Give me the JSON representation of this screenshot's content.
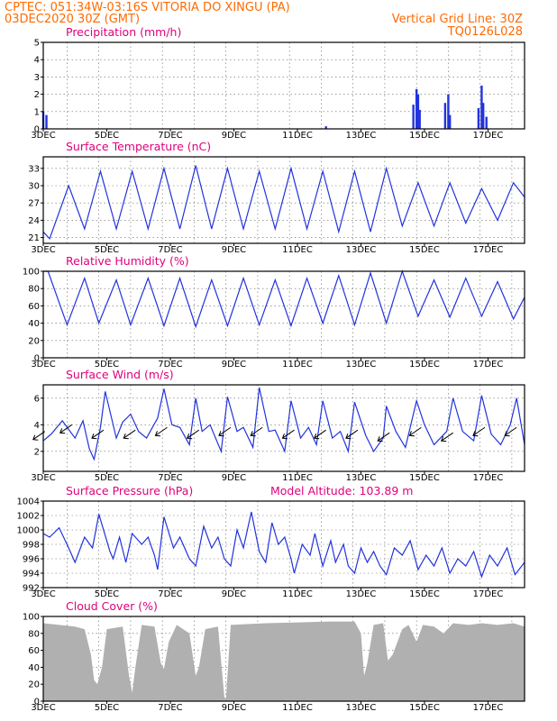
{
  "header": {
    "line1_left": "CPTEC:   051:34W-03:16S   VITORIA DO XINGU (PA)",
    "line2_left": "03DEC2020 30Z (GMT)",
    "line2_right": "Vertical Grid Line: 30Z",
    "line3_right": "TQ0126L028"
  },
  "colors": {
    "header": "#ff6a00",
    "panel_title": "#e0007c",
    "series": "#2233dd",
    "cloud_fill": "#b0b0b0"
  },
  "x_ticks": [
    "3DEC",
    "5DEC",
    "7DEC",
    "9DEC",
    "11DEC",
    "13DEC",
    "15DEC",
    "17DEC"
  ],
  "chart_data": [
    {
      "id": "precip",
      "type": "bar",
      "title": "Precipitation (mm/h)",
      "xlabel": "",
      "ylabel": "",
      "x_range_days": [
        3,
        18.15
      ],
      "ylim": [
        0,
        5
      ],
      "yticks": [
        0,
        1,
        2,
        3,
        4,
        5
      ],
      "bars": [
        {
          "day": 3.0,
          "value": 1.0
        },
        {
          "day": 3.1,
          "value": 0.8
        },
        {
          "day": 11.9,
          "value": 0.15
        },
        {
          "day": 14.65,
          "value": 1.4
        },
        {
          "day": 14.75,
          "value": 2.3
        },
        {
          "day": 14.8,
          "value": 2.0
        },
        {
          "day": 14.85,
          "value": 1.1
        },
        {
          "day": 15.65,
          "value": 1.5
        },
        {
          "day": 15.75,
          "value": 2.0
        },
        {
          "day": 15.8,
          "value": 0.8
        },
        {
          "day": 16.7,
          "value": 1.2
        },
        {
          "day": 16.8,
          "value": 2.5
        },
        {
          "day": 16.85,
          "value": 1.5
        },
        {
          "day": 16.95,
          "value": 0.7
        }
      ]
    },
    {
      "id": "temp",
      "type": "line",
      "title": "Surface Temperature (nC)",
      "xlabel": "",
      "ylabel": "",
      "ylim": [
        20,
        35
      ],
      "yticks": [
        21,
        24,
        27,
        30,
        33
      ],
      "min_day": [
        3.2,
        4.3,
        5.3,
        6.3,
        7.3,
        8.3,
        9.3,
        10.3,
        11.3,
        12.3,
        13.3,
        14.3,
        15.3,
        16.3,
        17.3
      ],
      "min_val": [
        20.8,
        22.5,
        22.5,
        22.5,
        22.5,
        22.5,
        22.5,
        22.5,
        22.5,
        22.0,
        22.0,
        23.0,
        23.0,
        23.5,
        24.0
      ],
      "max_day": [
        3.8,
        4.8,
        5.8,
        6.8,
        7.8,
        8.8,
        9.8,
        10.8,
        11.8,
        12.8,
        13.8,
        14.8,
        15.8,
        16.8,
        17.8
      ],
      "max_val": [
        30.0,
        32.5,
        32.5,
        33.0,
        33.5,
        33.0,
        32.5,
        33.0,
        32.5,
        32.5,
        33.0,
        30.5,
        30.5,
        29.5,
        30.5
      ],
      "end": {
        "day": 18.15,
        "value": 28.0
      }
    },
    {
      "id": "rh",
      "type": "line",
      "title": "Relative Humidity (%)",
      "xlabel": "",
      "ylabel": "",
      "ylim": [
        0,
        100
      ],
      "yticks": [
        0,
        20,
        40,
        60,
        80,
        100
      ],
      "points": [
        {
          "day": 3.0,
          "value": 100
        },
        {
          "day": 3.15,
          "value": 100
        },
        {
          "day": 3.75,
          "value": 38
        },
        {
          "day": 4.3,
          "value": 92
        },
        {
          "day": 4.75,
          "value": 40
        },
        {
          "day": 5.3,
          "value": 90
        },
        {
          "day": 5.75,
          "value": 38
        },
        {
          "day": 6.3,
          "value": 92
        },
        {
          "day": 6.8,
          "value": 37
        },
        {
          "day": 7.3,
          "value": 92
        },
        {
          "day": 7.8,
          "value": 36
        },
        {
          "day": 8.3,
          "value": 90
        },
        {
          "day": 8.8,
          "value": 37
        },
        {
          "day": 9.3,
          "value": 92
        },
        {
          "day": 9.8,
          "value": 38
        },
        {
          "day": 10.3,
          "value": 90
        },
        {
          "day": 10.8,
          "value": 37
        },
        {
          "day": 11.3,
          "value": 92
        },
        {
          "day": 11.8,
          "value": 40
        },
        {
          "day": 12.3,
          "value": 95
        },
        {
          "day": 12.8,
          "value": 38
        },
        {
          "day": 13.3,
          "value": 98
        },
        {
          "day": 13.8,
          "value": 40
        },
        {
          "day": 14.3,
          "value": 100
        },
        {
          "day": 14.8,
          "value": 48
        },
        {
          "day": 15.3,
          "value": 90
        },
        {
          "day": 15.8,
          "value": 47
        },
        {
          "day": 16.3,
          "value": 92
        },
        {
          "day": 16.8,
          "value": 48
        },
        {
          "day": 17.3,
          "value": 88
        },
        {
          "day": 17.8,
          "value": 45
        },
        {
          "day": 18.15,
          "value": 70
        }
      ]
    },
    {
      "id": "wind",
      "type": "line",
      "title": "Surface Wind (m/s)",
      "xlabel": "",
      "ylabel": "",
      "ylim": [
        0.5,
        7
      ],
      "yticks": [
        2,
        4,
        6
      ],
      "points": [
        {
          "day": 3.0,
          "value": 2.8
        },
        {
          "day": 3.25,
          "value": 3.3
        },
        {
          "day": 3.6,
          "value": 4.3
        },
        {
          "day": 4.0,
          "value": 3.0
        },
        {
          "day": 4.25,
          "value": 4.3
        },
        {
          "day": 4.45,
          "value": 2.2
        },
        {
          "day": 4.6,
          "value": 1.4
        },
        {
          "day": 4.8,
          "value": 3.8
        },
        {
          "day": 4.95,
          "value": 6.5
        },
        {
          "day": 5.3,
          "value": 3.0
        },
        {
          "day": 5.5,
          "value": 4.2
        },
        {
          "day": 5.75,
          "value": 4.8
        },
        {
          "day": 6.0,
          "value": 3.5
        },
        {
          "day": 6.25,
          "value": 3.0
        },
        {
          "day": 6.6,
          "value": 4.5
        },
        {
          "day": 6.8,
          "value": 6.7
        },
        {
          "day": 7.05,
          "value": 4.0
        },
        {
          "day": 7.3,
          "value": 3.8
        },
        {
          "day": 7.6,
          "value": 2.5
        },
        {
          "day": 7.8,
          "value": 6.0
        },
        {
          "day": 8.0,
          "value": 3.5
        },
        {
          "day": 8.25,
          "value": 4.0
        },
        {
          "day": 8.6,
          "value": 2.0
        },
        {
          "day": 8.8,
          "value": 6.1
        },
        {
          "day": 9.1,
          "value": 3.5
        },
        {
          "day": 9.3,
          "value": 3.8
        },
        {
          "day": 9.6,
          "value": 2.3
        },
        {
          "day": 9.8,
          "value": 6.8
        },
        {
          "day": 10.1,
          "value": 3.5
        },
        {
          "day": 10.3,
          "value": 3.6
        },
        {
          "day": 10.6,
          "value": 2.0
        },
        {
          "day": 10.8,
          "value": 5.8
        },
        {
          "day": 11.1,
          "value": 3.0
        },
        {
          "day": 11.35,
          "value": 3.8
        },
        {
          "day": 11.6,
          "value": 2.5
        },
        {
          "day": 11.8,
          "value": 5.8
        },
        {
          "day": 12.1,
          "value": 3.0
        },
        {
          "day": 12.35,
          "value": 3.5
        },
        {
          "day": 12.6,
          "value": 2.0
        },
        {
          "day": 12.8,
          "value": 5.7
        },
        {
          "day": 13.15,
          "value": 3.2
        },
        {
          "day": 13.4,
          "value": 2.0
        },
        {
          "day": 13.7,
          "value": 3.0
        },
        {
          "day": 13.8,
          "value": 5.4
        },
        {
          "day": 14.1,
          "value": 3.5
        },
        {
          "day": 14.4,
          "value": 2.3
        },
        {
          "day": 14.75,
          "value": 5.8
        },
        {
          "day": 15.0,
          "value": 4.0
        },
        {
          "day": 15.3,
          "value": 2.5
        },
        {
          "day": 15.7,
          "value": 3.5
        },
        {
          "day": 15.9,
          "value": 6.0
        },
        {
          "day": 16.2,
          "value": 3.5
        },
        {
          "day": 16.55,
          "value": 2.8
        },
        {
          "day": 16.8,
          "value": 6.2
        },
        {
          "day": 17.1,
          "value": 3.3
        },
        {
          "day": 17.4,
          "value": 2.5
        },
        {
          "day": 17.7,
          "value": 4.0
        },
        {
          "day": 17.9,
          "value": 6.0
        },
        {
          "day": 18.15,
          "value": 2.5
        }
      ],
      "arrows": [
        {
          "day": 3.05,
          "value": 3.5,
          "toward": "southwest"
        },
        {
          "day": 3.9,
          "value": 4.0,
          "toward": "southwest"
        },
        {
          "day": 4.9,
          "value": 3.6,
          "toward": "southwest"
        },
        {
          "day": 5.9,
          "value": 3.6,
          "toward": "southwest"
        },
        {
          "day": 6.9,
          "value": 3.8,
          "toward": "southwest"
        },
        {
          "day": 7.9,
          "value": 3.6,
          "toward": "southwest"
        },
        {
          "day": 8.9,
          "value": 3.8,
          "toward": "southwest"
        },
        {
          "day": 9.9,
          "value": 3.8,
          "toward": "southwest"
        },
        {
          "day": 10.9,
          "value": 3.6,
          "toward": "southwest"
        },
        {
          "day": 11.9,
          "value": 3.6,
          "toward": "southwest"
        },
        {
          "day": 12.9,
          "value": 3.6,
          "toward": "southwest"
        },
        {
          "day": 13.9,
          "value": 3.4,
          "toward": "southwest"
        },
        {
          "day": 14.9,
          "value": 3.8,
          "toward": "southwest"
        },
        {
          "day": 15.9,
          "value": 3.4,
          "toward": "southwest"
        },
        {
          "day": 16.9,
          "value": 3.8,
          "toward": "southwest"
        },
        {
          "day": 17.9,
          "value": 3.8,
          "toward": "southwest"
        }
      ]
    },
    {
      "id": "press",
      "type": "line",
      "title": "Surface Pressure (hPa)",
      "subtitle": "Model Altitude: 103.89 m",
      "xlabel": "",
      "ylabel": "",
      "ylim": [
        992,
        1004
      ],
      "yticks": [
        992,
        994,
        996,
        998,
        1000,
        1002,
        1004
      ],
      "points": [
        {
          "day": 3.0,
          "value": 999.5
        },
        {
          "day": 3.2,
          "value": 999.0
        },
        {
          "day": 3.5,
          "value": 1000.3
        },
        {
          "day": 3.8,
          "value": 997.5
        },
        {
          "day": 4.0,
          "value": 995.5
        },
        {
          "day": 4.3,
          "value": 999.0
        },
        {
          "day": 4.55,
          "value": 997.5
        },
        {
          "day": 4.75,
          "value": 1002.2
        },
        {
          "day": 5.1,
          "value": 997.0
        },
        {
          "day": 5.2,
          "value": 996.0
        },
        {
          "day": 5.4,
          "value": 999.0
        },
        {
          "day": 5.6,
          "value": 995.5
        },
        {
          "day": 5.8,
          "value": 999.5
        },
        {
          "day": 6.1,
          "value": 998.0
        },
        {
          "day": 6.3,
          "value": 999.0
        },
        {
          "day": 6.5,
          "value": 996.5
        },
        {
          "day": 6.6,
          "value": 994.5
        },
        {
          "day": 6.8,
          "value": 1001.8
        },
        {
          "day": 7.1,
          "value": 997.5
        },
        {
          "day": 7.3,
          "value": 999.0
        },
        {
          "day": 7.6,
          "value": 996.0
        },
        {
          "day": 7.8,
          "value": 995.0
        },
        {
          "day": 8.05,
          "value": 1000.5
        },
        {
          "day": 8.3,
          "value": 997.5
        },
        {
          "day": 8.5,
          "value": 999.0
        },
        {
          "day": 8.7,
          "value": 996.0
        },
        {
          "day": 8.9,
          "value": 995.0
        },
        {
          "day": 9.1,
          "value": 1000.0
        },
        {
          "day": 9.3,
          "value": 997.5
        },
        {
          "day": 9.55,
          "value": 1002.5
        },
        {
          "day": 9.8,
          "value": 997.0
        },
        {
          "day": 10.0,
          "value": 995.5
        },
        {
          "day": 10.2,
          "value": 1001.0
        },
        {
          "day": 10.4,
          "value": 998.0
        },
        {
          "day": 10.6,
          "value": 999.0
        },
        {
          "day": 10.8,
          "value": 996.0
        },
        {
          "day": 10.9,
          "value": 994.0
        },
        {
          "day": 11.15,
          "value": 998.0
        },
        {
          "day": 11.4,
          "value": 996.5
        },
        {
          "day": 11.55,
          "value": 999.5
        },
        {
          "day": 11.8,
          "value": 995.0
        },
        {
          "day": 12.05,
          "value": 998.5
        },
        {
          "day": 12.2,
          "value": 995.5
        },
        {
          "day": 12.45,
          "value": 998.0
        },
        {
          "day": 12.6,
          "value": 995.0
        },
        {
          "day": 12.8,
          "value": 994.0
        },
        {
          "day": 13.0,
          "value": 997.5
        },
        {
          "day": 13.2,
          "value": 995.5
        },
        {
          "day": 13.4,
          "value": 997.0
        },
        {
          "day": 13.6,
          "value": 995.0
        },
        {
          "day": 13.8,
          "value": 993.8
        },
        {
          "day": 14.05,
          "value": 997.5
        },
        {
          "day": 14.3,
          "value": 996.5
        },
        {
          "day": 14.55,
          "value": 998.5
        },
        {
          "day": 14.8,
          "value": 994.5
        },
        {
          "day": 15.05,
          "value": 996.5
        },
        {
          "day": 15.3,
          "value": 995.0
        },
        {
          "day": 15.55,
          "value": 997.5
        },
        {
          "day": 15.8,
          "value": 994.0
        },
        {
          "day": 16.05,
          "value": 996.0
        },
        {
          "day": 16.3,
          "value": 995.0
        },
        {
          "day": 16.55,
          "value": 997.0
        },
        {
          "day": 16.8,
          "value": 993.5
        },
        {
          "day": 17.05,
          "value": 996.5
        },
        {
          "day": 17.3,
          "value": 995.0
        },
        {
          "day": 17.6,
          "value": 997.5
        },
        {
          "day": 17.85,
          "value": 993.8
        },
        {
          "day": 18.15,
          "value": 995.5
        }
      ]
    },
    {
      "id": "cloud",
      "type": "area",
      "title": "Cloud Cover (%)",
      "xlabel": "",
      "ylabel": "",
      "ylim": [
        0,
        100
      ],
      "yticks": [
        0,
        20,
        40,
        60,
        80,
        100
      ],
      "points": [
        {
          "day": 3.0,
          "value": 92
        },
        {
          "day": 3.5,
          "value": 90
        },
        {
          "day": 4.0,
          "value": 88
        },
        {
          "day": 4.3,
          "value": 85
        },
        {
          "day": 4.5,
          "value": 55
        },
        {
          "day": 4.6,
          "value": 25
        },
        {
          "day": 4.7,
          "value": 20
        },
        {
          "day": 4.85,
          "value": 40
        },
        {
          "day": 5.0,
          "value": 85
        },
        {
          "day": 5.5,
          "value": 88
        },
        {
          "day": 5.7,
          "value": 30
        },
        {
          "day": 5.8,
          "value": 10
        },
        {
          "day": 5.9,
          "value": 40
        },
        {
          "day": 6.1,
          "value": 90
        },
        {
          "day": 6.5,
          "value": 88
        },
        {
          "day": 6.7,
          "value": 45
        },
        {
          "day": 6.8,
          "value": 38
        },
        {
          "day": 6.95,
          "value": 70
        },
        {
          "day": 7.2,
          "value": 90
        },
        {
          "day": 7.6,
          "value": 80
        },
        {
          "day": 7.8,
          "value": 30
        },
        {
          "day": 7.9,
          "value": 40
        },
        {
          "day": 8.1,
          "value": 85
        },
        {
          "day": 8.5,
          "value": 88
        },
        {
          "day": 8.7,
          "value": 5
        },
        {
          "day": 8.75,
          "value": 2
        },
        {
          "day": 8.9,
          "value": 90
        },
        {
          "day": 10.0,
          "value": 92
        },
        {
          "day": 11.0,
          "value": 93
        },
        {
          "day": 12.0,
          "value": 94
        },
        {
          "day": 12.8,
          "value": 94
        },
        {
          "day": 13.0,
          "value": 80
        },
        {
          "day": 13.1,
          "value": 30
        },
        {
          "day": 13.2,
          "value": 45
        },
        {
          "day": 13.4,
          "value": 90
        },
        {
          "day": 13.7,
          "value": 92
        },
        {
          "day": 13.85,
          "value": 48
        },
        {
          "day": 14.0,
          "value": 55
        },
        {
          "day": 14.3,
          "value": 85
        },
        {
          "day": 14.5,
          "value": 90
        },
        {
          "day": 14.75,
          "value": 70
        },
        {
          "day": 14.95,
          "value": 90
        },
        {
          "day": 15.3,
          "value": 88
        },
        {
          "day": 15.6,
          "value": 80
        },
        {
          "day": 15.9,
          "value": 92
        },
        {
          "day": 16.4,
          "value": 90
        },
        {
          "day": 16.8,
          "value": 92
        },
        {
          "day": 17.3,
          "value": 90
        },
        {
          "day": 17.8,
          "value": 92
        },
        {
          "day": 18.15,
          "value": 88
        }
      ]
    }
  ]
}
